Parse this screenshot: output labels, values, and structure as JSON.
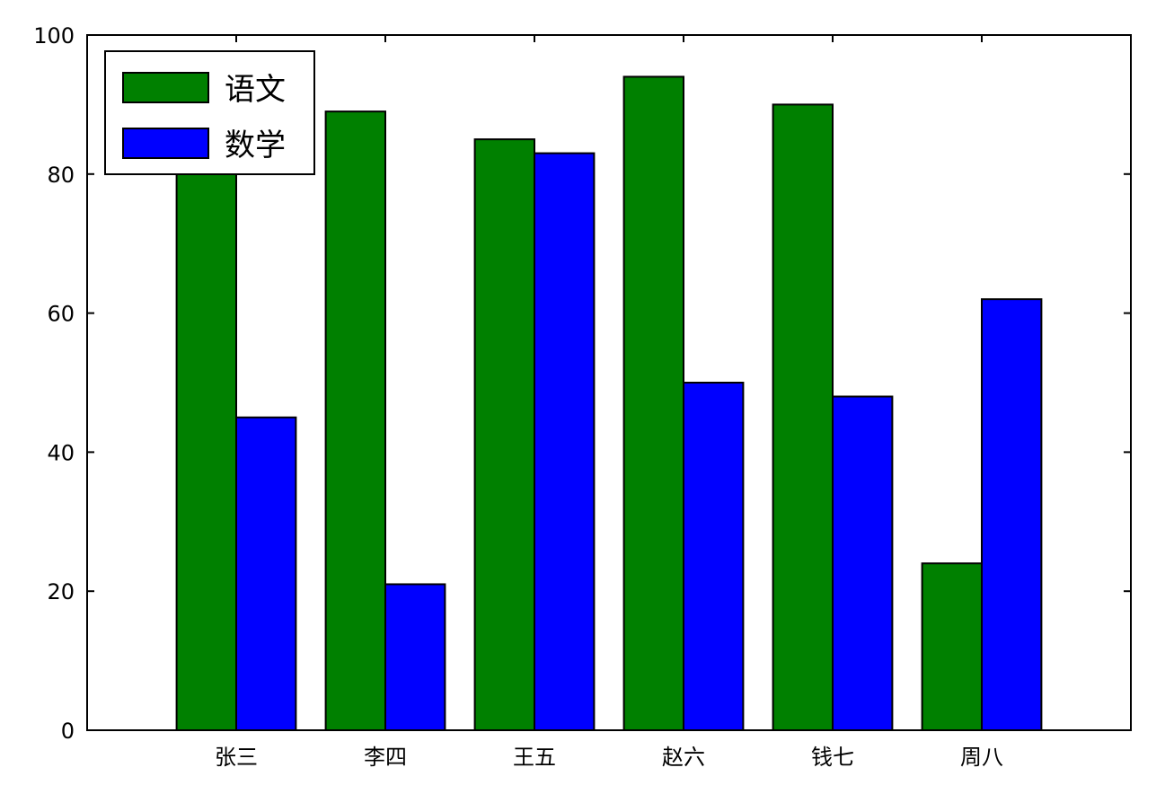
{
  "chart_data": {
    "type": "bar",
    "categories": [
      "张三",
      "李四",
      "王五",
      "赵六",
      "钱七",
      "周八"
    ],
    "series": [
      {
        "name": "语文",
        "values": [
          80,
          89,
          85,
          94,
          90,
          24
        ],
        "color": "#008000"
      },
      {
        "name": "数学",
        "values": [
          45,
          21,
          83,
          50,
          48,
          62
        ],
        "color": "#0000ff"
      }
    ],
    "ylim": [
      0,
      100
    ],
    "yticks": [
      0,
      20,
      40,
      60,
      80,
      100
    ],
    "grid": false,
    "legend_position": "top-left",
    "title": "",
    "xlabel": "",
    "ylabel": ""
  }
}
